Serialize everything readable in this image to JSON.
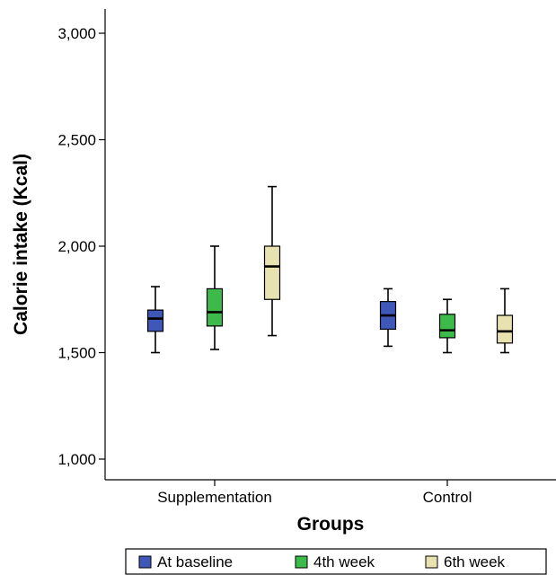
{
  "chart_data": {
    "type": "box",
    "xlabel": "Groups",
    "ylabel": "Calorie intake (Kcal)",
    "ylim": [
      900,
      3100
    ],
    "yticks": [
      1000,
      1500,
      2000,
      2500,
      3000
    ],
    "ytick_labels": [
      "1,000",
      "1,500",
      "2,000",
      "2,500",
      "3,000"
    ],
    "categories": [
      "Supplementation",
      "Control"
    ],
    "legend_position": "bottom",
    "series": [
      {
        "name": "At baseline",
        "color": "#3f57b8",
        "boxes": [
          {
            "min": 1500,
            "q1": 1600,
            "median": 1660,
            "q3": 1700,
            "max": 1810
          },
          {
            "min": 1530,
            "q1": 1610,
            "median": 1675,
            "q3": 1740,
            "max": 1800
          }
        ]
      },
      {
        "name": "4th week",
        "color": "#3dbb4a",
        "boxes": [
          {
            "min": 1515,
            "q1": 1625,
            "median": 1690,
            "q3": 1800,
            "max": 2000
          },
          {
            "min": 1500,
            "q1": 1570,
            "median": 1605,
            "q3": 1680,
            "max": 1750
          }
        ]
      },
      {
        "name": "6th week",
        "color": "#e8e1b0",
        "boxes": [
          {
            "min": 1580,
            "q1": 1750,
            "median": 1905,
            "q3": 2000,
            "max": 2280
          },
          {
            "min": 1500,
            "q1": 1545,
            "median": 1600,
            "q3": 1675,
            "max": 1800
          }
        ]
      }
    ]
  }
}
